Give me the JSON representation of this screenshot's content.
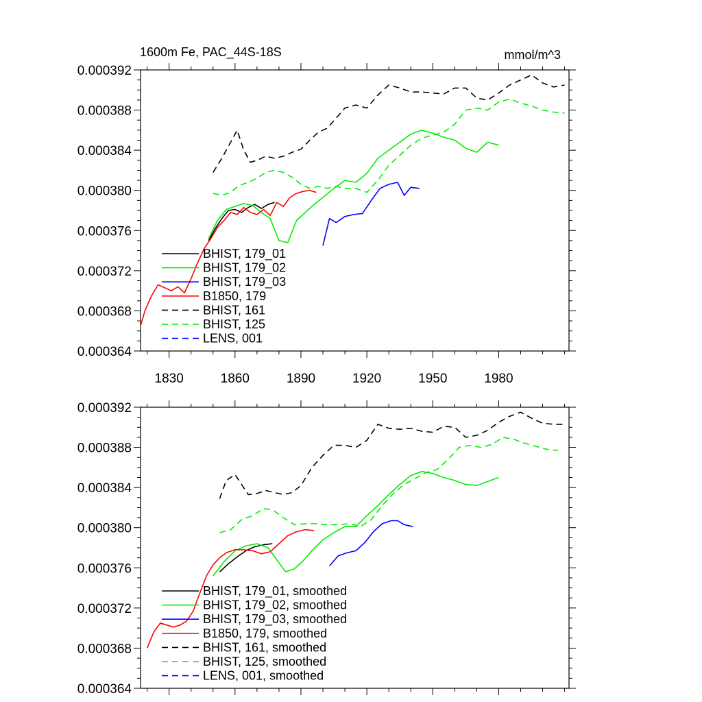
{
  "chart_data": [
    {
      "type": "line",
      "title": "1600m Fe, PAC_44S-18S",
      "units": "mmol/m^3",
      "xlim": [
        1817,
        2012
      ],
      "ylim": [
        0.000364,
        0.000392
      ],
      "xticks": [
        1830,
        1860,
        1890,
        1920,
        1950,
        1980
      ],
      "xtick_labels": [
        "1830",
        "1860",
        "1890",
        "1920",
        "1950",
        "1980"
      ],
      "yticks": [
        0.000364,
        0.000368,
        0.000372,
        0.000376,
        0.00038,
        0.000384,
        0.000388,
        0.000392
      ],
      "ytick_labels": [
        "0.000364",
        "0.000368",
        "0.000372",
        "0.000376",
        "0.000380",
        "0.000384",
        "0.000388",
        "0.000392"
      ],
      "legend_position": "bottom-left",
      "series": [
        {
          "name": "BHIST, 179_01",
          "color": "#000000",
          "dash": "solid",
          "draw": true,
          "x": [
            1848,
            1851,
            1854,
            1857,
            1860,
            1863,
            1866,
            1869,
            1872,
            1875,
            1878
          ],
          "y": [
            0.000375,
            0.0003762,
            0.0003772,
            0.000378,
            0.0003781,
            0.0003778,
            0.0003783,
            0.0003786,
            0.0003782,
            0.0003786,
            0.0003788
          ]
        },
        {
          "name": "BHIST, 179_02",
          "color": "#00ee00",
          "dash": "solid",
          "draw": true,
          "x": [
            1848,
            1852,
            1856,
            1860,
            1864,
            1868,
            1872,
            1876,
            1880,
            1884,
            1888,
            1892,
            1896,
            1900,
            1905,
            1910,
            1915,
            1920,
            1925,
            1930,
            1935,
            1940,
            1945,
            1950,
            1955,
            1960,
            1965,
            1970,
            1975,
            1980
          ],
          "y": [
            0.0003752,
            0.000377,
            0.0003781,
            0.0003784,
            0.0003787,
            0.0003785,
            0.0003778,
            0.0003772,
            0.000375,
            0.0003748,
            0.000377,
            0.0003778,
            0.0003786,
            0.0003793,
            0.0003802,
            0.000381,
            0.0003808,
            0.0003817,
            0.0003832,
            0.000384,
            0.0003848,
            0.0003856,
            0.000386,
            0.0003857,
            0.0003853,
            0.000385,
            0.0003842,
            0.0003838,
            0.0003848,
            0.0003845
          ]
        },
        {
          "name": "BHIST, 179_03",
          "color": "#0000ff",
          "dash": "solid",
          "draw": true,
          "x": [
            1900,
            1903,
            1906,
            1910,
            1914,
            1918,
            1922,
            1926,
            1930,
            1934,
            1937,
            1940,
            1944
          ],
          "y": [
            0.0003745,
            0.0003772,
            0.0003768,
            0.0003774,
            0.0003776,
            0.0003777,
            0.000379,
            0.0003802,
            0.0003806,
            0.0003808,
            0.0003795,
            0.0003803,
            0.0003802
          ]
        },
        {
          "name": "B1850, 179",
          "color": "#ff0000",
          "dash": "solid",
          "draw": true,
          "x": [
            1817,
            1819,
            1822,
            1825,
            1828,
            1831,
            1834,
            1837,
            1840,
            1843,
            1846,
            1849,
            1852,
            1855,
            1858,
            1861,
            1864,
            1867,
            1870,
            1873,
            1876,
            1879,
            1882,
            1885,
            1888,
            1891,
            1894,
            1897
          ],
          "y": [
            0.0003665,
            0.000368,
            0.0003695,
            0.0003706,
            0.0003703,
            0.00037,
            0.0003704,
            0.0003698,
            0.0003712,
            0.0003728,
            0.0003742,
            0.0003752,
            0.0003763,
            0.000377,
            0.0003778,
            0.0003776,
            0.0003783,
            0.0003778,
            0.0003776,
            0.0003781,
            0.0003775,
            0.0003788,
            0.0003784,
            0.0003793,
            0.0003797,
            0.0003799,
            0.00038,
            0.0003798
          ]
        },
        {
          "name": "BHIST, 161",
          "color": "#000000",
          "dash": "dashed",
          "draw": true,
          "x": [
            1850,
            1854,
            1858,
            1861,
            1864,
            1867,
            1870,
            1874,
            1878,
            1882,
            1886,
            1890,
            1894,
            1898,
            1902,
            1906,
            1910,
            1915,
            1920,
            1925,
            1930,
            1935,
            1940,
            1945,
            1950,
            1955,
            1960,
            1965,
            1970,
            1975,
            1980,
            1985,
            1990,
            1995,
            2000,
            2005,
            2010
          ],
          "y": [
            0.0003818,
            0.0003832,
            0.0003848,
            0.000386,
            0.000384,
            0.0003828,
            0.000383,
            0.0003834,
            0.0003832,
            0.0003834,
            0.0003838,
            0.0003841,
            0.000385,
            0.0003858,
            0.0003862,
            0.0003872,
            0.0003882,
            0.0003885,
            0.0003882,
            0.0003895,
            0.0003905,
            0.0003902,
            0.0003898,
            0.0003898,
            0.0003897,
            0.0003896,
            0.0003902,
            0.0003902,
            0.0003892,
            0.000389,
            0.0003897,
            0.0003905,
            0.000391,
            0.0003915,
            0.0003907,
            0.0003903,
            0.0003905
          ]
        },
        {
          "name": "BHIST, 125",
          "color": "#00ee00",
          "dash": "dashed",
          "draw": true,
          "x": [
            1850,
            1854,
            1858,
            1862,
            1866,
            1870,
            1874,
            1878,
            1882,
            1886,
            1890,
            1894,
            1898,
            1902,
            1906,
            1910,
            1915,
            1920,
            1925,
            1930,
            1935,
            1940,
            1945,
            1950,
            1955,
            1960,
            1965,
            1970,
            1975,
            1980,
            1985,
            1990,
            1995,
            2000,
            2005,
            2010
          ],
          "y": [
            0.0003797,
            0.0003795,
            0.0003798,
            0.0003805,
            0.0003808,
            0.0003812,
            0.0003818,
            0.000382,
            0.0003818,
            0.0003813,
            0.0003806,
            0.0003802,
            0.0003804,
            0.0003802,
            0.0003804,
            0.0003802,
            0.0003802,
            0.0003798,
            0.000381,
            0.0003825,
            0.0003835,
            0.0003845,
            0.0003852,
            0.0003855,
            0.0003858,
            0.0003866,
            0.000388,
            0.0003882,
            0.000388,
            0.0003888,
            0.0003891,
            0.0003887,
            0.0003884,
            0.000388,
            0.0003878,
            0.0003877
          ]
        },
        {
          "name": "LENS, 001",
          "color": "#0000ff",
          "dash": "dashed",
          "draw": false,
          "x": [],
          "y": []
        }
      ]
    },
    {
      "type": "line",
      "title": "",
      "xlim": [
        1817,
        2012
      ],
      "ylim": [
        0.000364,
        0.000392
      ],
      "xticks": [
        1830,
        1860,
        1890,
        1920,
        1950,
        1980
      ],
      "yticks": [
        0.000364,
        0.000368,
        0.000372,
        0.000376,
        0.00038,
        0.000384,
        0.000388,
        0.000392
      ],
      "ytick_labels": [
        "0.000364",
        "0.000368",
        "0.000372",
        "0.000376",
        "0.000380",
        "0.000384",
        "0.000388",
        "0.000392"
      ],
      "legend_position": "bottom-left",
      "series": [
        {
          "name": "BHIST, 179_01, smoothed",
          "color": "#000000",
          "dash": "solid",
          "draw": true,
          "x": [
            1853,
            1857,
            1861,
            1865,
            1869,
            1873,
            1877
          ],
          "y": [
            0.0003756,
            0.0003764,
            0.0003771,
            0.0003777,
            0.0003781,
            0.0003783,
            0.0003784
          ]
        },
        {
          "name": "BHIST, 179_02, smoothed",
          "color": "#00ee00",
          "dash": "solid",
          "draw": true,
          "x": [
            1850,
            1855,
            1860,
            1865,
            1870,
            1875,
            1880,
            1883,
            1887,
            1891,
            1895,
            1900,
            1905,
            1910,
            1915,
            1920,
            1925,
            1930,
            1935,
            1940,
            1945,
            1950,
            1955,
            1960,
            1965,
            1970,
            1975,
            1980
          ],
          "y": [
            0.0003752,
            0.0003766,
            0.0003777,
            0.0003782,
            0.0003784,
            0.000378,
            0.0003765,
            0.0003756,
            0.0003759,
            0.0003767,
            0.0003777,
            0.0003788,
            0.0003795,
            0.0003801,
            0.0003801,
            0.0003812,
            0.0003822,
            0.0003833,
            0.0003843,
            0.0003852,
            0.0003856,
            0.0003854,
            0.000385,
            0.0003847,
            0.0003843,
            0.0003842,
            0.0003846,
            0.000385
          ]
        },
        {
          "name": "BHIST, 179_03, smoothed",
          "color": "#0000ff",
          "dash": "solid",
          "draw": true,
          "x": [
            1903,
            1907,
            1911,
            1915,
            1919,
            1923,
            1927,
            1931,
            1934,
            1937,
            1941
          ],
          "y": [
            0.0003762,
            0.0003772,
            0.0003775,
            0.0003777,
            0.0003785,
            0.0003796,
            0.0003804,
            0.0003807,
            0.0003807,
            0.0003803,
            0.0003801
          ]
        },
        {
          "name": "B1850, 179, smoothed",
          "color": "#ff0000",
          "dash": "solid",
          "draw": true,
          "x": [
            1820,
            1823,
            1826,
            1829,
            1832,
            1835,
            1838,
            1841,
            1844,
            1847,
            1850,
            1853,
            1856,
            1860,
            1864,
            1868,
            1872,
            1876,
            1880,
            1884,
            1888,
            1892,
            1896
          ],
          "y": [
            0.000368,
            0.0003696,
            0.0003705,
            0.0003703,
            0.0003701,
            0.0003703,
            0.0003707,
            0.0003717,
            0.0003735,
            0.0003752,
            0.0003763,
            0.000377,
            0.0003775,
            0.0003778,
            0.0003778,
            0.0003777,
            0.0003774,
            0.0003776,
            0.0003784,
            0.0003792,
            0.0003796,
            0.0003798,
            0.0003797
          ]
        },
        {
          "name": "BHIST, 161, smoothed",
          "color": "#000000",
          "dash": "dashed",
          "draw": true,
          "x": [
            1853,
            1856,
            1860,
            1863,
            1866,
            1870,
            1874,
            1878,
            1882,
            1886,
            1890,
            1895,
            1900,
            1905,
            1910,
            1915,
            1920,
            1925,
            1930,
            1935,
            1940,
            1945,
            1950,
            1955,
            1960,
            1965,
            1970,
            1975,
            1980,
            1985,
            1990,
            1995,
            2000,
            2005,
            2010
          ],
          "y": [
            0.0003829,
            0.0003847,
            0.0003853,
            0.0003843,
            0.0003833,
            0.0003834,
            0.0003837,
            0.0003835,
            0.0003833,
            0.0003835,
            0.0003842,
            0.000386,
            0.0003872,
            0.0003882,
            0.0003882,
            0.000388,
            0.0003887,
            0.0003903,
            0.0003899,
            0.0003898,
            0.0003899,
            0.0003896,
            0.0003895,
            0.0003901,
            0.00039,
            0.000389,
            0.0003892,
            0.0003897,
            0.0003905,
            0.0003911,
            0.0003915,
            0.0003909,
            0.0003904,
            0.0003903,
            0.0003903
          ]
        },
        {
          "name": "BHIST, 125, smoothed",
          "color": "#00ee00",
          "dash": "dashed",
          "draw": true,
          "x": [
            1853,
            1858,
            1863,
            1868,
            1873,
            1877,
            1882,
            1887,
            1892,
            1897,
            1902,
            1907,
            1912,
            1917,
            1922,
            1927,
            1932,
            1937,
            1942,
            1947,
            1952,
            1957,
            1962,
            1967,
            1972,
            1977,
            1982,
            1987,
            1992,
            1997,
            2002,
            2007
          ],
          "y": [
            0.0003795,
            0.0003798,
            0.0003808,
            0.0003812,
            0.0003819,
            0.0003818,
            0.000381,
            0.0003803,
            0.0003804,
            0.0003804,
            0.0003803,
            0.0003803,
            0.0003804,
            0.0003801,
            0.0003808,
            0.0003822,
            0.0003834,
            0.0003843,
            0.0003849,
            0.0003855,
            0.0003858,
            0.0003868,
            0.000388,
            0.0003882,
            0.000388,
            0.0003883,
            0.000389,
            0.0003888,
            0.0003884,
            0.0003881,
            0.0003878,
            0.0003877
          ]
        },
        {
          "name": "LENS, 001, smoothed",
          "color": "#0000ff",
          "dash": "dashed",
          "draw": false,
          "x": [],
          "y": []
        }
      ]
    }
  ]
}
